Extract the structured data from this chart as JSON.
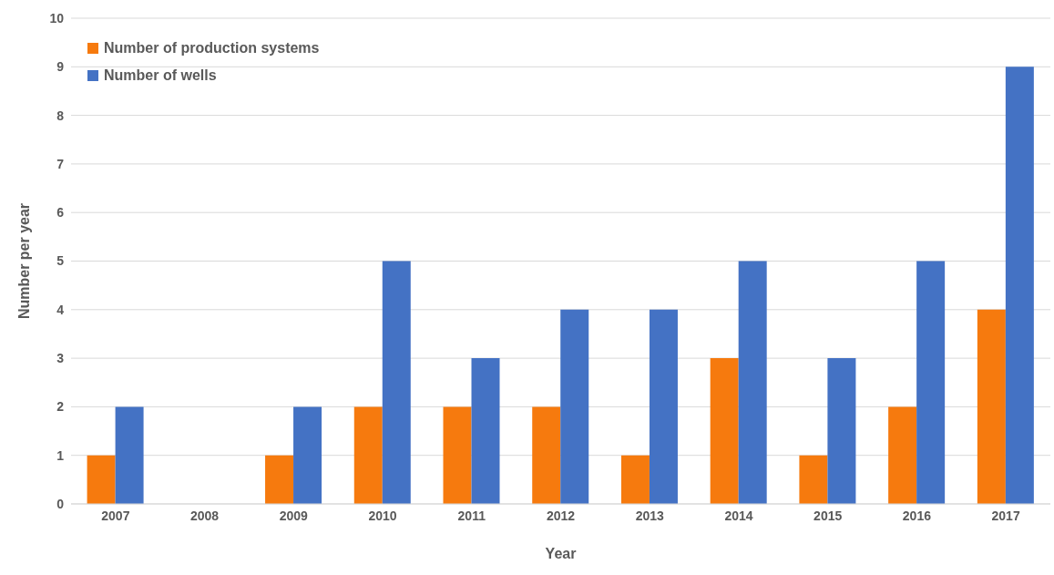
{
  "chart_data": {
    "type": "bar",
    "xlabel": "Year",
    "ylabel": "Number per year",
    "categories": [
      "2007",
      "2008",
      "2009",
      "2010",
      "2011",
      "2012",
      "2013",
      "2014",
      "2015",
      "2016",
      "2017"
    ],
    "series": [
      {
        "name": "Number of production systems",
        "color": "#f67a0e",
        "values": [
          1,
          0,
          1,
          2,
          2,
          2,
          1,
          3,
          1,
          2,
          4
        ]
      },
      {
        "name": "Number of wells",
        "color": "#4472c4",
        "values": [
          2,
          0,
          2,
          5,
          3,
          4,
          4,
          5,
          3,
          5,
          9
        ]
      }
    ],
    "ylim": [
      0,
      10
    ],
    "yticks": [
      0,
      1,
      2,
      3,
      4,
      5,
      6,
      7,
      8,
      9,
      10
    ],
    "grid": "y",
    "legend": "top left"
  }
}
